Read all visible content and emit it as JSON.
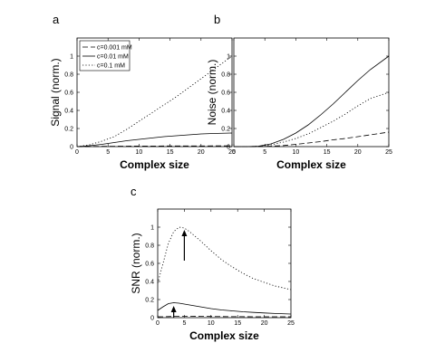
{
  "chart_data": [
    {
      "panel": "a",
      "type": "line",
      "xlabel": "Complex size",
      "ylabel": "Signal (norm.)",
      "xlim": [
        0,
        25
      ],
      "ylim": [
        0,
        1.2
      ],
      "xticks": [
        0,
        5,
        10,
        15,
        20,
        25
      ],
      "yticks": [
        0,
        0.2,
        0.4,
        0.6,
        0.8,
        1
      ],
      "grid": false,
      "legend_position": "top-left",
      "x": [
        0,
        2,
        4,
        6,
        8,
        10,
        12,
        14,
        16,
        18,
        20,
        22,
        25
      ],
      "series": [
        {
          "name": "c=0.001 mM",
          "style": "dashed",
          "values": [
            0,
            0.001,
            0.003,
            0.004,
            0.005,
            0.006,
            0.006,
            0.007,
            0.007,
            0.007,
            0.007,
            0.008,
            0.008
          ]
        },
        {
          "name": "c=0.01 mM",
          "style": "solid",
          "values": [
            0,
            0.01,
            0.025,
            0.045,
            0.065,
            0.08,
            0.095,
            0.11,
            0.12,
            0.13,
            0.14,
            0.145,
            0.15
          ]
        },
        {
          "name": "c=0.1 mM",
          "style": "dotted",
          "values": [
            0,
            0.02,
            0.06,
            0.11,
            0.19,
            0.28,
            0.37,
            0.46,
            0.55,
            0.65,
            0.75,
            0.85,
            1.0
          ]
        }
      ]
    },
    {
      "panel": "b",
      "type": "line",
      "xlabel": "Complex size",
      "ylabel": "Noise (norm.)",
      "xlim": [
        0,
        25
      ],
      "ylim": [
        0,
        1.2
      ],
      "xticks": [
        0,
        5,
        10,
        15,
        20,
        25
      ],
      "yticks": [
        0,
        0.2,
        0.4,
        0.6,
        0.8,
        1
      ],
      "grid": false,
      "x": [
        0,
        2,
        4,
        6,
        8,
        10,
        12,
        14,
        16,
        18,
        20,
        22,
        25
      ],
      "series": [
        {
          "style": "dashed",
          "values": [
            0,
            0,
            0.001,
            0.005,
            0.012,
            0.025,
            0.04,
            0.055,
            0.075,
            0.09,
            0.11,
            0.13,
            0.16
          ]
        },
        {
          "style": "solid",
          "values": [
            0,
            0,
            0.005,
            0.03,
            0.08,
            0.15,
            0.24,
            0.35,
            0.47,
            0.6,
            0.73,
            0.85,
            1.0
          ]
        },
        {
          "style": "dotted",
          "values": [
            0,
            0,
            0.004,
            0.02,
            0.05,
            0.09,
            0.14,
            0.21,
            0.28,
            0.36,
            0.45,
            0.53,
            0.6
          ]
        }
      ]
    },
    {
      "panel": "c",
      "type": "line",
      "xlabel": "Complex size",
      "ylabel": "SNR (norm.)",
      "xlim": [
        0,
        25
      ],
      "ylim": [
        0,
        1.2
      ],
      "xticks": [
        0,
        5,
        10,
        15,
        20,
        25
      ],
      "yticks": [
        0,
        0.2,
        0.4,
        0.6,
        0.8,
        1
      ],
      "grid": false,
      "x": [
        0,
        1,
        2,
        3,
        4,
        5,
        6,
        8,
        10,
        12,
        14,
        16,
        18,
        20,
        22,
        25
      ],
      "series": [
        {
          "style": "dashed",
          "values": [
            0.01,
            0.01,
            0.012,
            0.014,
            0.015,
            0.015,
            0.015,
            0.014,
            0.013,
            0.012,
            0.011,
            0.011,
            0.01,
            0.01,
            0.01,
            0.01
          ]
        },
        {
          "style": "solid",
          "values": [
            0.08,
            0.12,
            0.155,
            0.165,
            0.16,
            0.15,
            0.14,
            0.12,
            0.1,
            0.085,
            0.075,
            0.065,
            0.058,
            0.052,
            0.046,
            0.04
          ]
        },
        {
          "style": "dotted",
          "values": [
            0.38,
            0.6,
            0.82,
            0.95,
            1.0,
            0.99,
            0.95,
            0.85,
            0.74,
            0.64,
            0.56,
            0.49,
            0.43,
            0.39,
            0.35,
            0.31
          ]
        }
      ],
      "arrows": [
        {
          "x": 5,
          "y_from": 0.63,
          "y_to": 0.97
        },
        {
          "x": 3,
          "y_from": 0.0,
          "y_to": 0.13
        }
      ]
    }
  ]
}
